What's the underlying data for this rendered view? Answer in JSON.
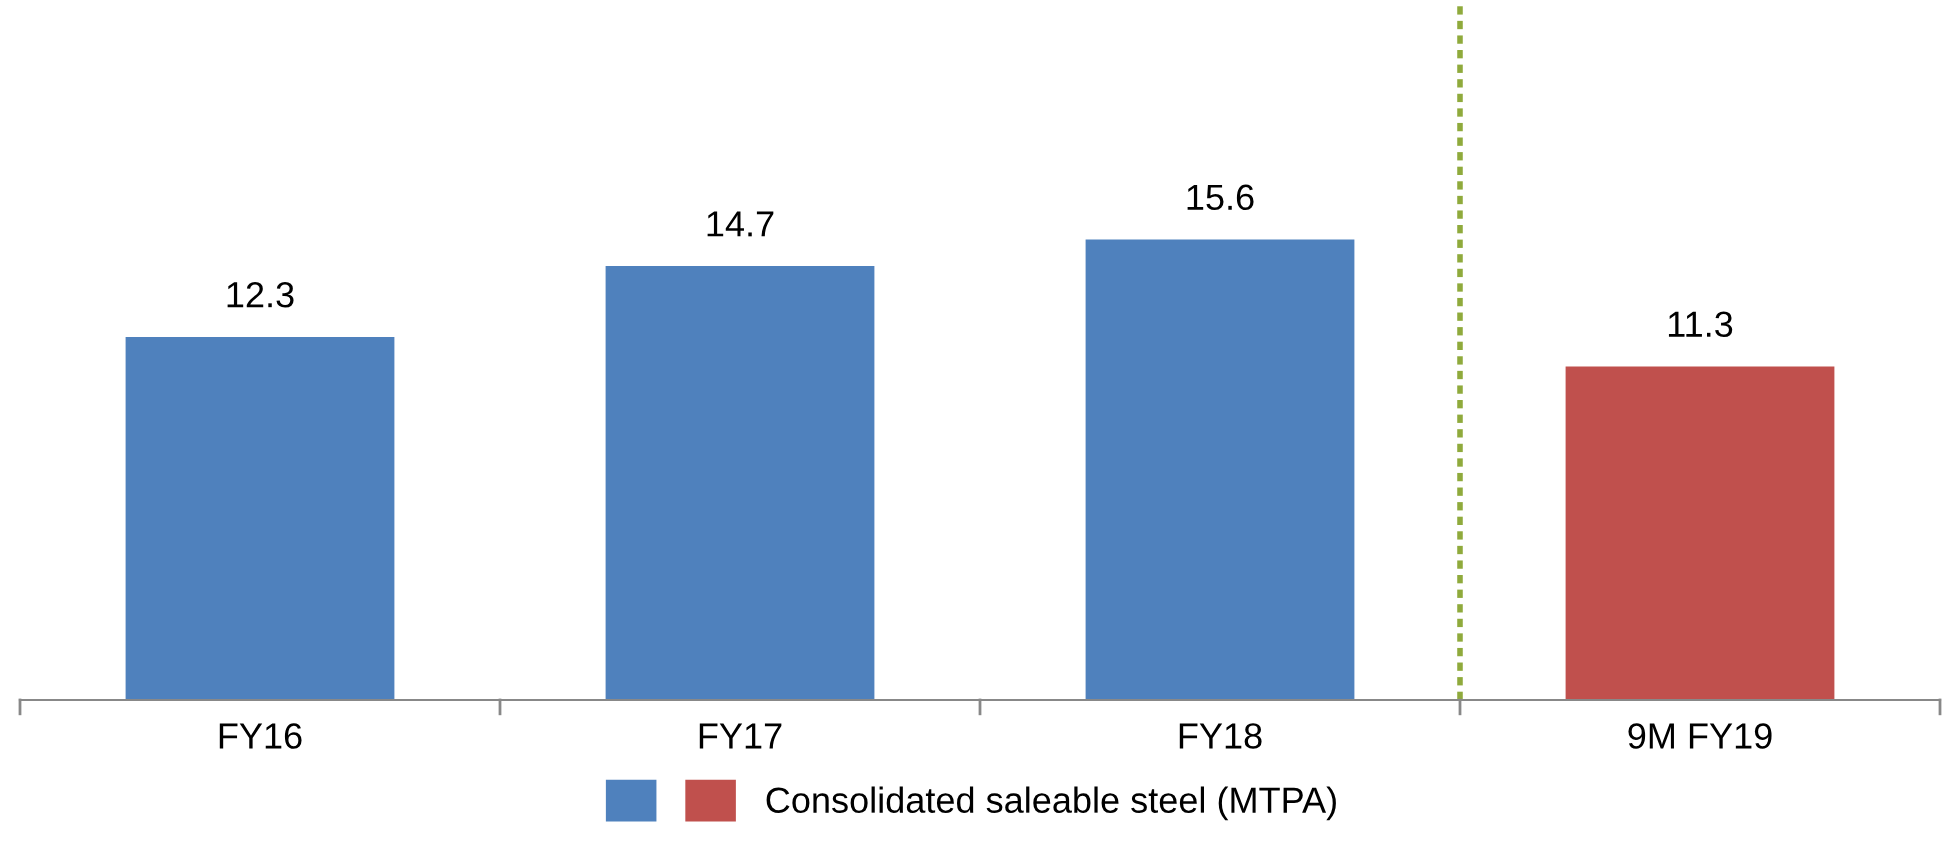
{
  "chart_data": {
    "type": "bar",
    "categories": [
      "FY16",
      "FY17",
      "FY18",
      "9M FY19"
    ],
    "series": [
      {
        "name": "Consolidated saleable steel (MTPA)",
        "colors": [
          "#4f81bd",
          "#4f81bd",
          "#4f81bd",
          "#c0504d"
        ],
        "values": [
          12.3,
          14.7,
          15.6,
          11.3
        ]
      }
    ],
    "data_labels": true,
    "legend": "bottom",
    "grid": false
  }
}
